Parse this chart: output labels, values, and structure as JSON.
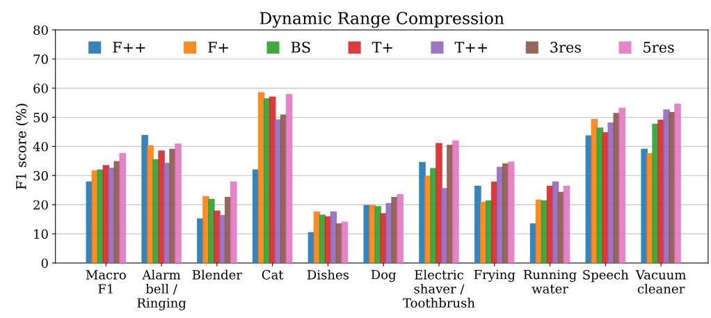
{
  "chart_data": {
    "type": "bar",
    "title": "Dynamic Range Compression",
    "ylabel": "F1 score (%)",
    "categories": [
      "Macro\nF1",
      "Alarm\nbell /\nRinging",
      "Blender",
      "Cat",
      "Dishes",
      "Dog",
      "Electric\nshaver /\nToothbrush",
      "Frying",
      "Running\nwater",
      "Speech",
      "Vacuum\ncleaner"
    ],
    "series": [
      {
        "name": "F++",
        "color": "#1f77b4",
        "values": [
          28,
          43.9,
          15.3,
          32.1,
          10.6,
          19.9,
          34.7,
          26.5,
          13.6,
          43.8,
          39.2
        ]
      },
      {
        "name": "F+",
        "color": "#ff7f0e",
        "values": [
          31.8,
          40.4,
          23,
          58.6,
          17.7,
          19.9,
          29.9,
          21,
          21.8,
          49.5,
          37.7
        ]
      },
      {
        "name": "BS",
        "color": "#2ca02c",
        "values": [
          32.1,
          35.6,
          22,
          56.5,
          16.6,
          19.5,
          32.6,
          21.5,
          21.5,
          46.5,
          47.8
        ]
      },
      {
        "name": "T+",
        "color": "#d62728",
        "values": [
          33.6,
          38.6,
          18,
          57.1,
          16,
          17.1,
          41.2,
          27.9,
          26.5,
          44.9,
          49.2
        ]
      },
      {
        "name": "T++",
        "color": "#9467bd",
        "values": [
          32.7,
          34.4,
          16.5,
          49.3,
          17.7,
          20.6,
          25.7,
          33,
          28,
          48.2,
          52.7
        ]
      },
      {
        "name": "3res",
        "color": "#8c564b",
        "values": [
          35,
          39.2,
          22.7,
          51,
          13.6,
          22.7,
          40.6,
          34.2,
          24.4,
          51.5,
          51.8
        ]
      },
      {
        "name": "5res",
        "color": "#e377c2",
        "values": [
          37.8,
          41,
          28,
          58,
          14.2,
          23.6,
          42.1,
          34.8,
          26.5,
          53.3,
          54.7
        ]
      }
    ],
    "ylim": [
      0,
      80
    ],
    "yticks": [
      0,
      10,
      20,
      30,
      40,
      50,
      60,
      70,
      80
    ],
    "grid": "y",
    "legend": "top"
  }
}
